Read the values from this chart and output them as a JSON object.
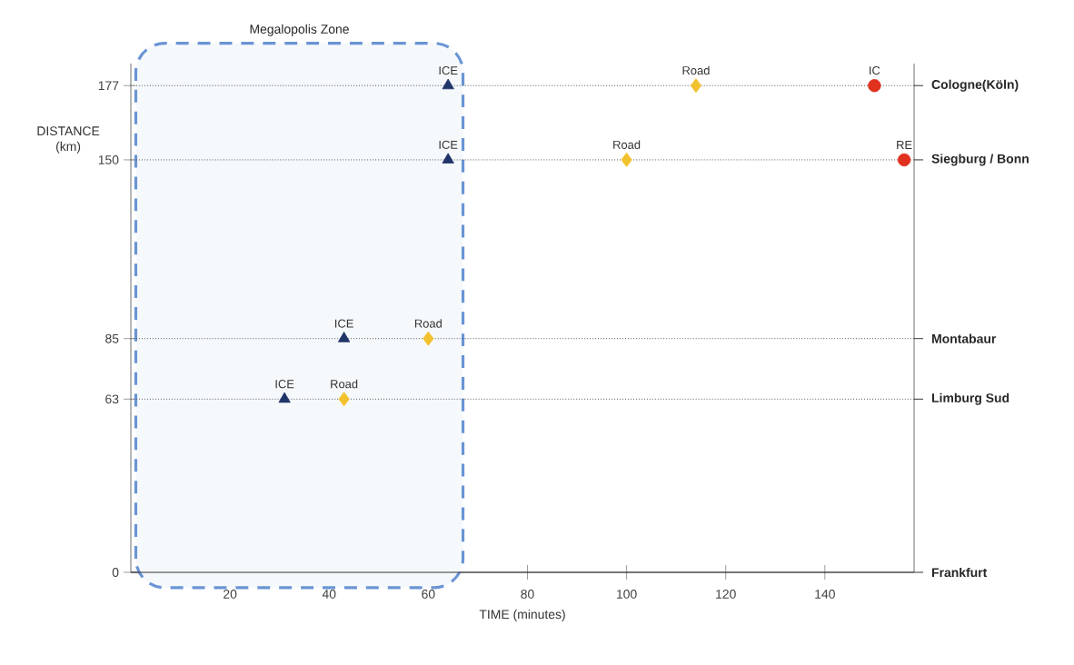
{
  "chart_data": {
    "type": "scatter",
    "xlabel": "TIME (minutes)",
    "ylabel": "DISTANCE (km)",
    "xlim": [
      0,
      158
    ],
    "xticks": [
      20,
      40,
      60,
      80,
      100,
      120,
      140
    ],
    "ylim": [
      0,
      185
    ],
    "yticks": [
      0,
      63,
      85,
      150,
      177
    ],
    "ref_lines": [
      {
        "axis": "y",
        "value": 0,
        "label": "Frankfurt",
        "color": "#333333"
      },
      {
        "axis": "y",
        "value": 63,
        "label": "Limburg Sud",
        "color": "#555555",
        "line_style": "dotted"
      },
      {
        "axis": "y",
        "value": 85,
        "label": "Montabaur",
        "color": "#555555",
        "line_style": "dotted"
      },
      {
        "axis": "y",
        "value": 150,
        "label": "Siegburg / Bonn",
        "color": "#555555",
        "line_style": "dotted"
      },
      {
        "axis": "y",
        "value": 177,
        "label": "Cologne(Köln)",
        "color": "#555555",
        "line_style": "dotted"
      }
    ],
    "bands": [
      {
        "axis": "x",
        "from": 1,
        "to": 67,
        "label": "Megalopolis Zone",
        "color": "#6a94d4"
      }
    ],
    "series": [
      {
        "name": "ICE",
        "color": "#1f3468",
        "marker": "triangle",
        "x": [
          31,
          43,
          64,
          64
        ],
        "values": [
          63,
          85,
          150,
          177
        ]
      },
      {
        "name": "Road",
        "color": "#f2c12e",
        "marker": "diamond",
        "x": [
          43,
          60,
          100,
          114
        ],
        "values": [
          63,
          85,
          150,
          177
        ]
      },
      {
        "name": "IC",
        "color": "#e0301e",
        "marker": "circle",
        "x": [
          150
        ],
        "values": [
          177
        ]
      },
      {
        "name": "RE",
        "color": "#e0301e",
        "marker": "circle",
        "x": [
          156
        ],
        "values": [
          150
        ]
      }
    ]
  }
}
